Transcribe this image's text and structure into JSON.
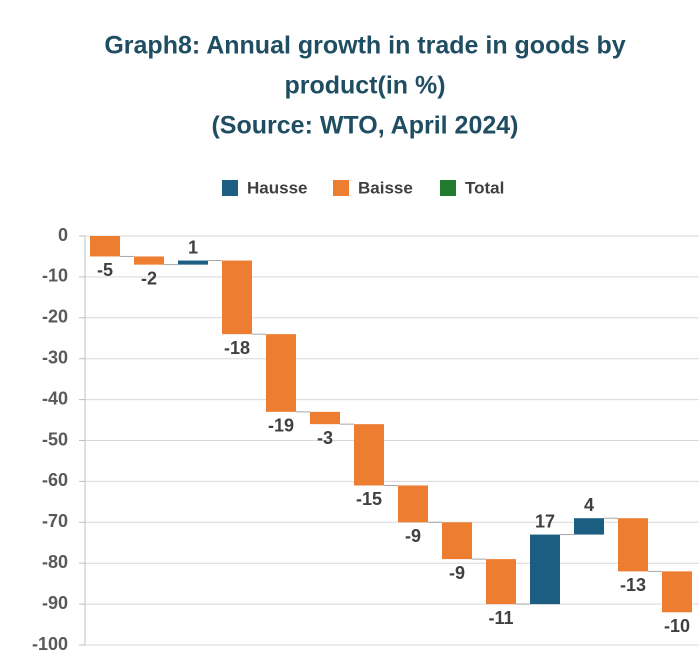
{
  "chart_data": {
    "type": "waterfall",
    "title_lines": [
      "Graph8: Annual growth in trade in goods by",
      "product(in %)",
      "(Source: WTO, April 2024)"
    ],
    "legend": [
      {
        "name": "Hausse",
        "color": "#1b5e82"
      },
      {
        "name": "Baisse",
        "color": "#ed7d31"
      },
      {
        "name": "Total",
        "color": "#217a2e"
      }
    ],
    "categories": [
      null,
      null,
      null,
      null,
      null,
      null,
      null,
      null,
      null,
      null,
      null,
      null,
      null,
      null
    ],
    "values": [
      -5,
      -2,
      1,
      -18,
      -19,
      -3,
      -15,
      -9,
      -9,
      -11,
      17,
      4,
      -13,
      -10
    ],
    "ylim": [
      -100,
      0
    ],
    "yticks": [
      0,
      -10,
      -20,
      -30,
      -40,
      -50,
      -60,
      -70,
      -80,
      -90,
      -100
    ],
    "grid": true
  }
}
